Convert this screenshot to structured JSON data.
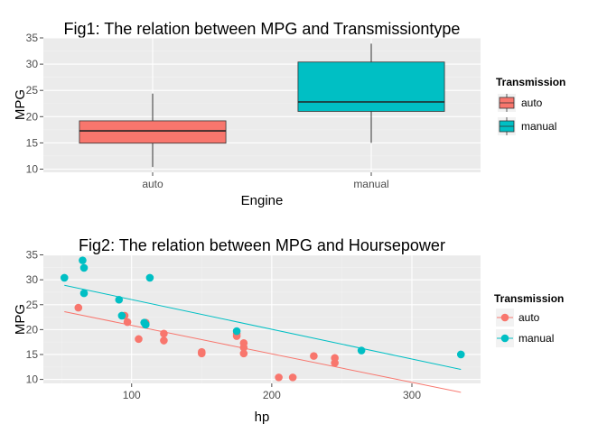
{
  "chart_data": [
    {
      "type": "box",
      "title": "Fig1: The relation between MPG and Transmissiontype",
      "xlabel": "Engine",
      "ylabel": "MPG",
      "categories": [
        "auto",
        "manual"
      ],
      "yticks": [
        10,
        15,
        20,
        25,
        30,
        35
      ],
      "ylim": [
        9.4,
        35
      ],
      "boxes": [
        {
          "category": "auto",
          "min": 10.4,
          "q1": 14.95,
          "median": 17.3,
          "q3": 19.2,
          "max": 24.4,
          "color": "#F8766D"
        },
        {
          "category": "manual",
          "min": 15.0,
          "q1": 21.0,
          "median": 22.8,
          "q3": 30.4,
          "max": 33.9,
          "color": "#00BFC4"
        }
      ],
      "legend": {
        "title": "Transmission",
        "items": [
          {
            "label": "auto",
            "color": "#F8766D"
          },
          {
            "label": "manual",
            "color": "#00BFC4"
          }
        ]
      }
    },
    {
      "type": "scatter",
      "title": "Fig2: The relation between MPG and Hoursepower",
      "xlabel": "hp",
      "ylabel": "MPG",
      "xticks": [
        100,
        200,
        300
      ],
      "yticks": [
        10,
        15,
        20,
        25,
        30,
        35
      ],
      "xlim": [
        37,
        349
      ],
      "ylim": [
        9.2,
        35.1
      ],
      "series": [
        {
          "name": "auto",
          "color": "#F8766D",
          "points": [
            [
              110,
              21.4
            ],
            [
              175,
              18.7
            ],
            [
              105,
              18.1
            ],
            [
              245,
              14.3
            ],
            [
              62,
              24.4
            ],
            [
              95,
              22.8
            ],
            [
              123,
              19.2
            ],
            [
              123,
              17.8
            ],
            [
              180,
              16.4
            ],
            [
              180,
              17.3
            ],
            [
              180,
              15.2
            ],
            [
              205,
              10.4
            ],
            [
              215,
              10.4
            ],
            [
              230,
              14.7
            ],
            [
              97,
              21.5
            ],
            [
              150,
              15.5
            ],
            [
              150,
              15.2
            ],
            [
              245,
              13.3
            ],
            [
              175,
              19.2
            ]
          ],
          "fit": {
            "from": [
              52,
              23.6
            ],
            "to": [
              335,
              7.4
            ]
          }
        },
        {
          "name": "manual",
          "color": "#00BFC4",
          "points": [
            [
              110,
              21.0
            ],
            [
              110,
              21.0
            ],
            [
              93,
              22.8
            ],
            [
              66,
              32.4
            ],
            [
              52,
              30.4
            ],
            [
              65,
              33.9
            ],
            [
              66,
              27.3
            ],
            [
              91,
              26.0
            ],
            [
              113,
              30.4
            ],
            [
              264,
              15.8
            ],
            [
              175,
              19.7
            ],
            [
              335,
              15.0
            ],
            [
              109,
              21.4
            ]
          ],
          "fit": {
            "from": [
              52,
              28.9
            ],
            "to": [
              335,
              12.0
            ]
          }
        }
      ],
      "legend": {
        "title": "Transmission",
        "items": [
          {
            "label": "auto",
            "color": "#F8766D"
          },
          {
            "label": "manual",
            "color": "#00BFC4"
          }
        ]
      }
    }
  ]
}
